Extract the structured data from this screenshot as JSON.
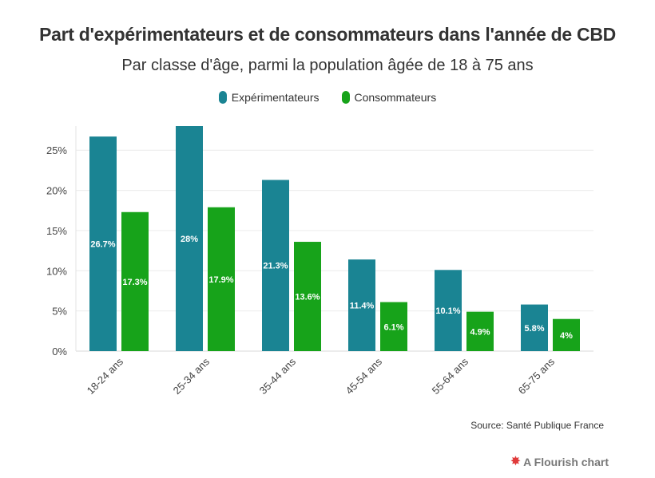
{
  "chart_data": {
    "type": "bar",
    "title": "Part d'expérimentateurs et de consommateurs dans l'année de CBD",
    "subtitle": "Par classe d'âge, parmi la population âgée de 18 à 75 ans",
    "categories": [
      "18-24 ans",
      "25-34 ans",
      "35-44 ans",
      "45-54 ans",
      "55-64 ans",
      "65-75 ans"
    ],
    "series": [
      {
        "name": "Expérimentateurs",
        "color": "#1a8493",
        "values": [
          26.7,
          28,
          21.3,
          11.4,
          10.1,
          5.8
        ],
        "labels": [
          "26.7%",
          "28%",
          "21.3%",
          "11.4%",
          "10.1%",
          "5.8%"
        ]
      },
      {
        "name": "Consommateurs",
        "color": "#17a31a",
        "values": [
          17.3,
          17.9,
          13.6,
          6.1,
          4.9,
          4
        ],
        "labels": [
          "17.3%",
          "17.9%",
          "13.6%",
          "6.1%",
          "4.9%",
          "4%"
        ]
      }
    ],
    "ylim": [
      0,
      28
    ],
    "yticks": [
      0,
      5,
      10,
      15,
      20,
      25
    ],
    "ytick_labels": [
      "0%",
      "5%",
      "10%",
      "15%",
      "20%",
      "25%"
    ],
    "xlabel": "",
    "ylabel": "",
    "grid": true,
    "legend_position": "top-center"
  },
  "source": "Source: Santé Publique France",
  "credit": {
    "label": "A Flourish chart",
    "icon": "flourish-logo-icon"
  }
}
